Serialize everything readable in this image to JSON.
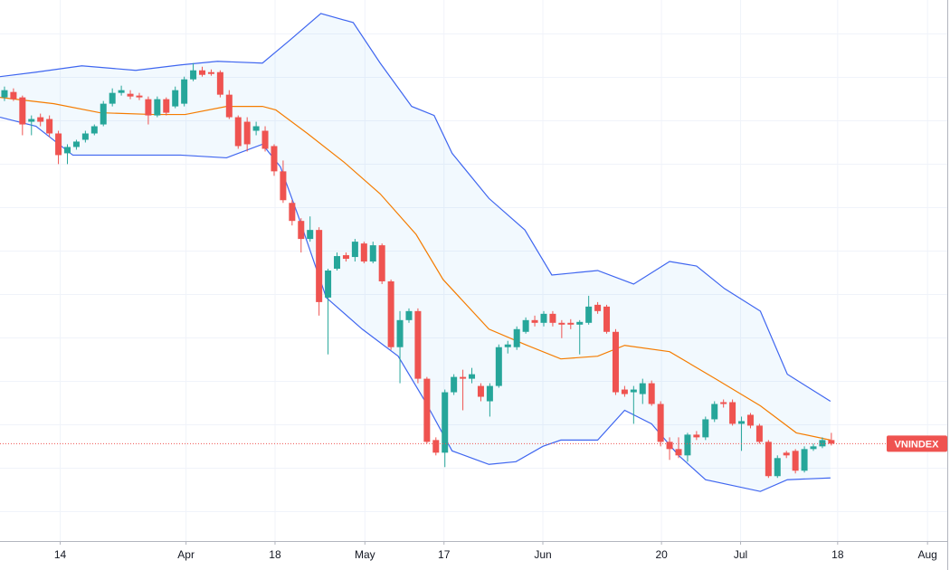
{
  "chart_data": {
    "type": "candlestick",
    "symbol": "VNINDEX",
    "up_color": "#26a69a",
    "down_color": "#ef5350",
    "open": [
      492,
      498,
      492,
      465,
      470,
      468,
      452,
      430,
      437,
      445,
      452,
      462,
      485,
      497,
      496,
      494,
      490,
      472,
      490,
      482,
      485,
      512,
      522,
      520,
      520,
      495,
      470,
      465,
      455,
      455,
      438,
      410,
      375,
      355,
      335,
      345,
      270,
      302,
      317,
      315,
      330,
      310,
      328,
      288,
      215,
      245,
      255,
      180,
      112,
      98,
      165,
      182,
      180,
      172,
      155,
      172,
      215,
      215,
      232,
      245,
      242,
      252,
      242,
      242,
      240,
      242,
      262,
      260,
      232,
      168,
      165,
      163,
      175,
      152,
      110,
      102,
      95,
      118,
      115,
      135,
      154,
      154,
      130,
      140,
      128,
      110,
      72,
      98,
      100,
      78,
      102,
      105,
      112
    ],
    "high": [
      504,
      502,
      494,
      472,
      474,
      472,
      455,
      440,
      445,
      455,
      462,
      488,
      502,
      505,
      500,
      497,
      493,
      493,
      492,
      504,
      515,
      530,
      526,
      523,
      522,
      500,
      472,
      470,
      465,
      460,
      440,
      422,
      378,
      358,
      360,
      348,
      302,
      320,
      320,
      335,
      332,
      332,
      330,
      290,
      255,
      258,
      258,
      182,
      115,
      168,
      185,
      190,
      192,
      175,
      175,
      218,
      222,
      238,
      248,
      250,
      255,
      255,
      245,
      246,
      245,
      272,
      265,
      262,
      235,
      172,
      172,
      180,
      178,
      155,
      115,
      115,
      120,
      122,
      138,
      155,
      157,
      157,
      138,
      142,
      130,
      112,
      95,
      100,
      102,
      105,
      108,
      115,
      120
    ],
    "low": [
      488,
      488,
      450,
      450,
      460,
      448,
      418,
      418,
      434,
      442,
      450,
      460,
      482,
      494,
      490,
      489,
      462,
      470,
      472,
      480,
      482,
      510,
      515,
      516,
      492,
      468,
      435,
      432,
      450,
      432,
      405,
      375,
      350,
      320,
      332,
      250,
      207,
      300,
      310,
      310,
      308,
      308,
      285,
      212,
      175,
      242,
      175,
      108,
      95,
      82,
      162,
      145,
      175,
      155,
      138,
      170,
      208,
      212,
      230,
      238,
      238,
      238,
      225,
      235,
      207,
      240,
      252,
      230,
      162,
      160,
      130,
      152,
      150,
      105,
      90,
      92,
      88,
      112,
      112,
      132,
      148,
      128,
      100,
      125,
      108,
      70,
      70,
      92,
      75,
      76,
      100,
      103,
      106
    ],
    "close": [
      500,
      490,
      462,
      468,
      465,
      452,
      428,
      437,
      443,
      452,
      460,
      485,
      497,
      500,
      493,
      492,
      472,
      490,
      475,
      500,
      512,
      522,
      517,
      518,
      495,
      470,
      438,
      440,
      460,
      435,
      410,
      378,
      355,
      335,
      345,
      265,
      300,
      316,
      313,
      332,
      310,
      328,
      288,
      215,
      245,
      255,
      180,
      110,
      98,
      165,
      182,
      180,
      185,
      160,
      172,
      215,
      218,
      235,
      245,
      242,
      252,
      242,
      240,
      240,
      243,
      260,
      255,
      232,
      165,
      163,
      168,
      175,
      152,
      110,
      102,
      95,
      118,
      115,
      135,
      152,
      152,
      130,
      133,
      128,
      110,
      72,
      92,
      95,
      78,
      102,
      105,
      112,
      108
    ],
    "bands": [
      {
        "color": "#3f66f0",
        "x": [
          -0.5,
          3.5,
          8.6,
          14.6,
          19.6,
          23.7,
          28.7,
          31.7,
          35.2,
          38.8,
          41.8,
          45.3,
          47.8,
          49.8,
          53.9,
          57.9,
          60.9,
          66,
          70,
          74,
          77,
          80.1,
          84.1,
          87.1,
          91.9
        ],
        "values": [
          515,
          520,
          527,
          522,
          528,
          532,
          530,
          555,
          585,
          575,
          530,
          482,
          472,
          430,
          380,
          345,
          295,
          300,
          285,
          310,
          305,
          280,
          255,
          185,
          155
        ]
      },
      {
        "color": "#f57c00",
        "x": [
          -0.5,
          5.5,
          10.6,
          16.6,
          20.1,
          24.7,
          28.7,
          30.2,
          33.7,
          37.8,
          41.8,
          45.8,
          48.8,
          53.9,
          57.9,
          61.9,
          66,
          69,
          74,
          79.1,
          84.1,
          88.1,
          91.9
        ],
        "values": [
          492,
          485,
          475,
          473,
          473,
          482,
          482,
          478,
          452,
          420,
          385,
          340,
          290,
          235,
          218,
          202,
          205,
          217,
          210,
          180,
          150,
          120,
          112
        ]
      },
      {
        "color": "#3f66f0",
        "x": [
          -0.5,
          3.5,
          7.6,
          11.6,
          19.6,
          24.7,
          28.7,
          30.7,
          32.7,
          35.8,
          39.8,
          43.8,
          46.8,
          49.8,
          53.9,
          56.9,
          59.9,
          61.9,
          66,
          69,
          72,
          75,
          78,
          84.1,
          87.1,
          91.9
        ],
        "values": [
          470,
          460,
          428,
          428,
          428,
          425,
          440,
          415,
          360,
          270,
          235,
          205,
          155,
          100,
          85,
          88,
          105,
          112,
          112,
          145,
          130,
          95,
          68,
          55,
          68,
          70
        ]
      }
    ],
    "band_fill": "#2196f3",
    "xlim": [
      -0.5,
      105.2
    ],
    "ylim": [
      0,
      600
    ],
    "xticks": [
      {
        "value": 6.2,
        "label": "14"
      },
      {
        "value": 20.2,
        "label": "Apr"
      },
      {
        "value": 30.1,
        "label": "18"
      },
      {
        "value": 40.1,
        "label": "May"
      },
      {
        "value": 48.9,
        "label": "17"
      },
      {
        "value": 59.9,
        "label": "Jun"
      },
      {
        "value": 73.1,
        "label": "20"
      },
      {
        "value": 81.9,
        "label": "Jul"
      },
      {
        "value": 92.7,
        "label": "18"
      },
      {
        "value": 102.7,
        "label": "Aug"
      }
    ],
    "grid": true
  }
}
